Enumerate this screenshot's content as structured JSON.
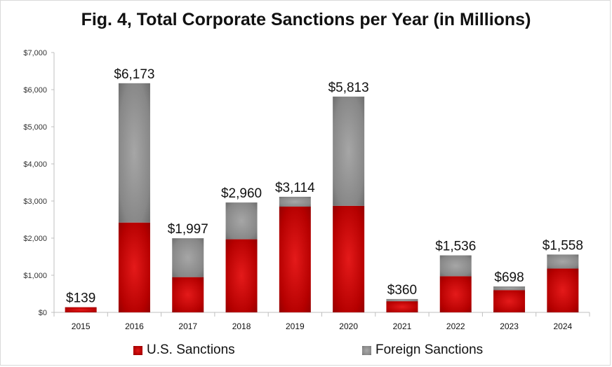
{
  "chart_data": {
    "type": "bar",
    "stacked": true,
    "title": "Fig. 4, Total Corporate Sanctions per Year (in Millions)",
    "categories": [
      "2015",
      "2016",
      "2017",
      "2018",
      "2019",
      "2020",
      "2021",
      "2022",
      "2023",
      "2024"
    ],
    "series": [
      {
        "name": "U.S. Sanctions",
        "values": [
          139,
          2420,
          950,
          1970,
          2850,
          2870,
          300,
          975,
          600,
          1180
        ]
      },
      {
        "name": "Foreign Sanctions",
        "values": [
          0,
          3753,
          1047,
          990,
          264,
          2943,
          60,
          561,
          98,
          378
        ]
      }
    ],
    "totals": [
      139,
      6173,
      1997,
      2960,
      3114,
      5813,
      360,
      1536,
      698,
      1558
    ],
    "total_labels": [
      "$139",
      "$6,173",
      "$1,997",
      "$2,960",
      "$3,114",
      "$5,813",
      "$360",
      "$1,536",
      "$698",
      "$1,558"
    ],
    "ylim": [
      0,
      7000
    ],
    "yticks": [
      0,
      1000,
      2000,
      3000,
      4000,
      5000,
      6000,
      7000
    ],
    "ytick_labels": [
      "$0",
      "$1,000",
      "$2,000",
      "$3,000",
      "$4,000",
      "$5,000",
      "$6,000",
      "$7,000"
    ],
    "grid": false,
    "legend_position": "bottom",
    "colors": {
      "us": "#c00000",
      "foreign": "#8c8c8c"
    }
  }
}
